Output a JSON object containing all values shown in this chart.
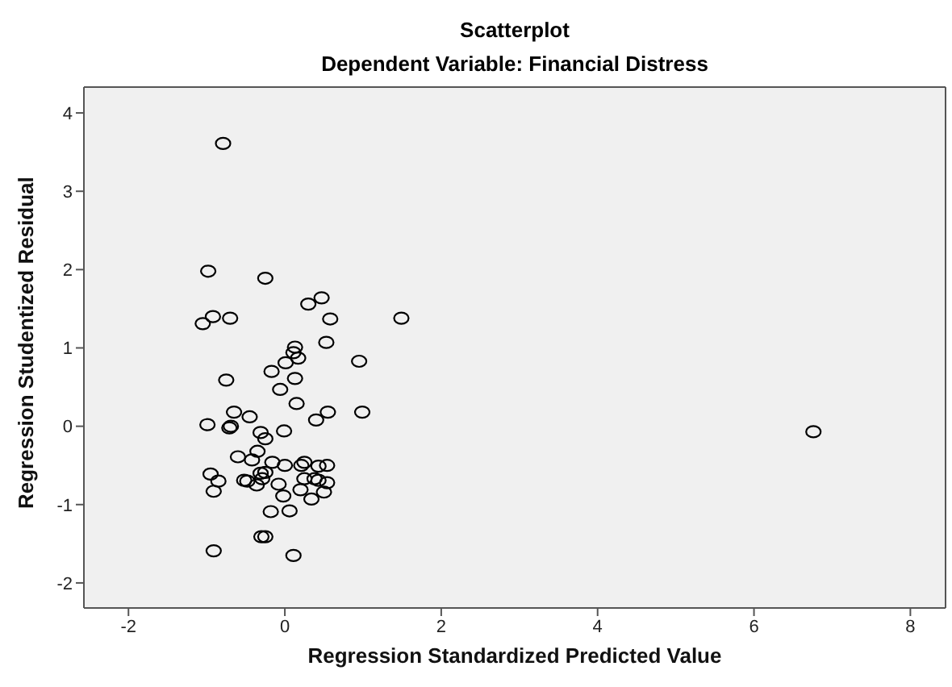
{
  "chart_data": {
    "type": "scatter",
    "title": "Scatterplot",
    "subtitle": "Dependent Variable: Financial Distress",
    "xlabel": "Regression Standardized Predicted Value",
    "ylabel": "Regression Studentized Residual",
    "x": [
      -0.79,
      -0.98,
      -0.25,
      -0.92,
      -1.05,
      -0.7,
      0.3,
      0.47,
      0.58,
      1.49,
      0.53,
      0.13,
      0.11,
      0.17,
      0.95,
      0.01,
      -0.17,
      -0.75,
      0.13,
      -0.06,
      0.15,
      -0.65,
      -0.45,
      0.4,
      0.55,
      0.99,
      -0.99,
      -0.69,
      -0.71,
      6.76,
      -0.31,
      -0.01,
      -0.25,
      -0.35,
      -0.6,
      -0.42,
      -0.16,
      0.0,
      0.21,
      0.25,
      0.43,
      0.54,
      -0.95,
      -0.85,
      -0.91,
      -0.52,
      -0.48,
      -0.31,
      -0.25,
      -0.29,
      -0.36,
      -0.08,
      0.25,
      0.38,
      0.43,
      0.54,
      0.2,
      0.5,
      -0.02,
      0.34,
      -0.18,
      0.06,
      -0.3,
      -0.25,
      -0.91,
      0.11
    ],
    "values": [
      3.61,
      1.98,
      1.89,
      1.4,
      1.31,
      1.38,
      1.56,
      1.64,
      1.37,
      1.38,
      1.07,
      1.01,
      0.94,
      0.87,
      0.83,
      0.81,
      0.7,
      0.59,
      0.61,
      0.47,
      0.29,
      0.18,
      0.12,
      0.08,
      0.18,
      0.18,
      0.02,
      0.0,
      -0.02,
      -0.07,
      -0.08,
      -0.06,
      -0.16,
      -0.32,
      -0.39,
      -0.43,
      -0.46,
      -0.5,
      -0.5,
      -0.46,
      -0.51,
      -0.5,
      -0.61,
      -0.7,
      -0.83,
      -0.69,
      -0.7,
      -0.6,
      -0.59,
      -0.67,
      -0.75,
      -0.74,
      -0.67,
      -0.67,
      -0.69,
      -0.72,
      -0.81,
      -0.84,
      -0.89,
      -0.93,
      -1.09,
      -1.08,
      -1.41,
      -1.41,
      -1.59,
      -1.65
    ],
    "color": "#000000",
    "marker": "circle",
    "xlim": [
      -2.57,
      8.45
    ],
    "xticks": [
      -2,
      0,
      2,
      4,
      6,
      8
    ],
    "ylim": [
      -2.32,
      4.33
    ],
    "yticks": [
      -2,
      -1,
      0,
      1,
      2,
      3,
      4
    ],
    "grid": false,
    "legend": false
  }
}
